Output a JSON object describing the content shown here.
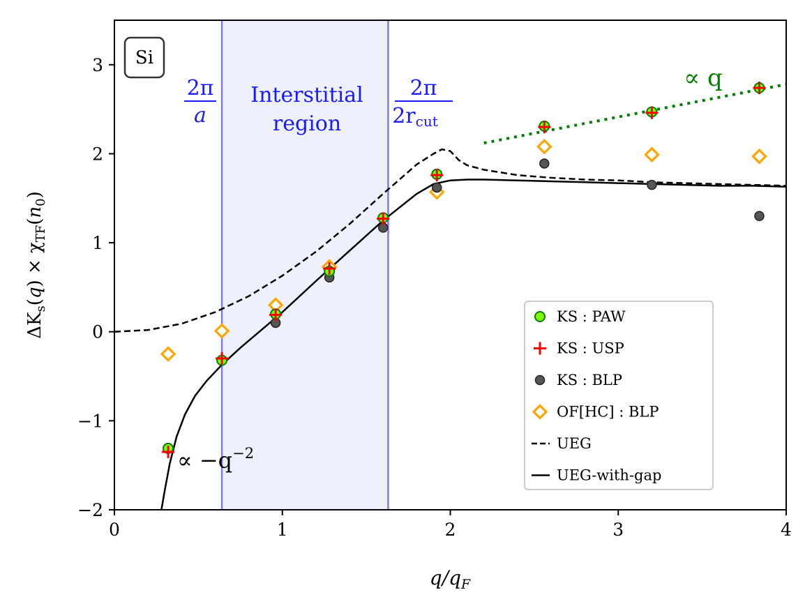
{
  "chart_data": {
    "type": "scatter",
    "xlabel": "q/q_F",
    "ylabel": "ΔK_s(q) × χ_TF(n_0)",
    "xlim": [
      0,
      4
    ],
    "ylim": [
      -2,
      3.5
    ],
    "xticks": [
      0,
      1,
      2,
      3,
      4
    ],
    "xtick_labels": [
      "0",
      "1",
      "2",
      "3",
      "4"
    ],
    "yticks": [
      -2,
      -1,
      0,
      1,
      2,
      3
    ],
    "ytick_labels": [
      "−2",
      "−1",
      "0",
      "1",
      "2",
      "3"
    ],
    "material_label": "Si",
    "shaded_region": {
      "x0": 0.64,
      "x1": 1.63,
      "label_line1": "Interstitial",
      "label_line2": "region"
    },
    "vlines": [
      {
        "x": 0.64,
        "num": "2π",
        "den": "a"
      },
      {
        "x": 1.63,
        "num": "2π",
        "den": "2r",
        "den_sub": "cut"
      }
    ],
    "annotations": {
      "prop_q": "∝ q",
      "prop_q2_base": "∝ −q",
      "prop_q2_exp": "−2"
    },
    "series": [
      {
        "name": "KS : PAW",
        "marker": "circle",
        "color": "#7cfc00",
        "edge": "#0a7a0a",
        "x": [
          0.32,
          0.64,
          0.96,
          1.28,
          1.6,
          1.92,
          2.56,
          3.2,
          3.84
        ],
        "y": [
          -1.31,
          -0.32,
          0.2,
          0.68,
          1.28,
          1.77,
          2.31,
          2.47,
          2.74
        ]
      },
      {
        "name": "KS : USP",
        "marker": "plus",
        "color": "#ff0000",
        "x": [
          0.32,
          0.64,
          0.96,
          1.28,
          1.6,
          1.92,
          2.56,
          3.2,
          3.84
        ],
        "y": [
          -1.35,
          -0.3,
          0.19,
          0.71,
          1.27,
          1.76,
          2.3,
          2.46,
          2.74
        ]
      },
      {
        "name": "KS : BLP",
        "marker": "circle",
        "color": "#555555",
        "edge": "#222222",
        "x": [
          0.96,
          1.28,
          1.6,
          1.92,
          2.56,
          3.2,
          3.84
        ],
        "y": [
          0.1,
          0.61,
          1.17,
          1.62,
          1.89,
          1.65,
          1.3
        ]
      },
      {
        "name": "OF[HC] : BLP",
        "marker": "diamond",
        "color": "#ffa500",
        "x": [
          0.32,
          0.64,
          0.96,
          1.28,
          1.92,
          2.56,
          3.2,
          3.84
        ],
        "y": [
          -0.25,
          0.01,
          0.3,
          0.73,
          1.57,
          2.08,
          1.99,
          1.97
        ]
      },
      {
        "name": "UEG",
        "marker": "dashed-line",
        "color": "#000000",
        "x": [
          0.0,
          0.2,
          0.4,
          0.6,
          0.8,
          1.0,
          1.2,
          1.4,
          1.6,
          1.8,
          1.9,
          1.95,
          2.0,
          2.05,
          2.1,
          2.2,
          2.4,
          2.6,
          2.8,
          3.0,
          3.2,
          3.4,
          3.6,
          3.8,
          4.0
        ],
        "y": [
          0.0,
          0.02,
          0.09,
          0.22,
          0.4,
          0.63,
          0.9,
          1.21,
          1.55,
          1.88,
          2.0,
          2.05,
          2.03,
          1.93,
          1.87,
          1.82,
          1.76,
          1.73,
          1.71,
          1.7,
          1.68,
          1.67,
          1.66,
          1.65,
          1.64
        ]
      },
      {
        "name": "UEG-with-gap",
        "marker": "solid-line",
        "color": "#000000",
        "x": [
          0.28,
          0.3,
          0.33,
          0.37,
          0.42,
          0.48,
          0.55,
          0.64,
          0.75,
          0.9,
          1.0,
          1.2,
          1.4,
          1.6,
          1.8,
          1.9,
          2.0,
          2.1,
          2.2,
          2.4,
          2.6,
          2.8,
          3.0,
          3.2,
          3.4,
          3.6,
          3.8,
          4.0
        ],
        "y": [
          -2.0,
          -1.78,
          -1.48,
          -1.18,
          -0.93,
          -0.72,
          -0.55,
          -0.37,
          -0.18,
          0.06,
          0.22,
          0.57,
          0.91,
          1.25,
          1.55,
          1.66,
          1.7,
          1.71,
          1.71,
          1.7,
          1.69,
          1.68,
          1.67,
          1.66,
          1.65,
          1.64,
          1.64,
          1.63
        ]
      },
      {
        "name": "∝ q guide",
        "marker": "dotted-line",
        "color": "#007f00",
        "x": [
          2.2,
          4.0
        ],
        "y": [
          2.12,
          2.78
        ]
      }
    ],
    "legend": {
      "position": "lower-right",
      "entries": [
        "KS : PAW",
        "KS : USP",
        "KS : BLP",
        "OF[HC] : BLP",
        "UEG",
        "UEG-with-gap"
      ]
    }
  }
}
